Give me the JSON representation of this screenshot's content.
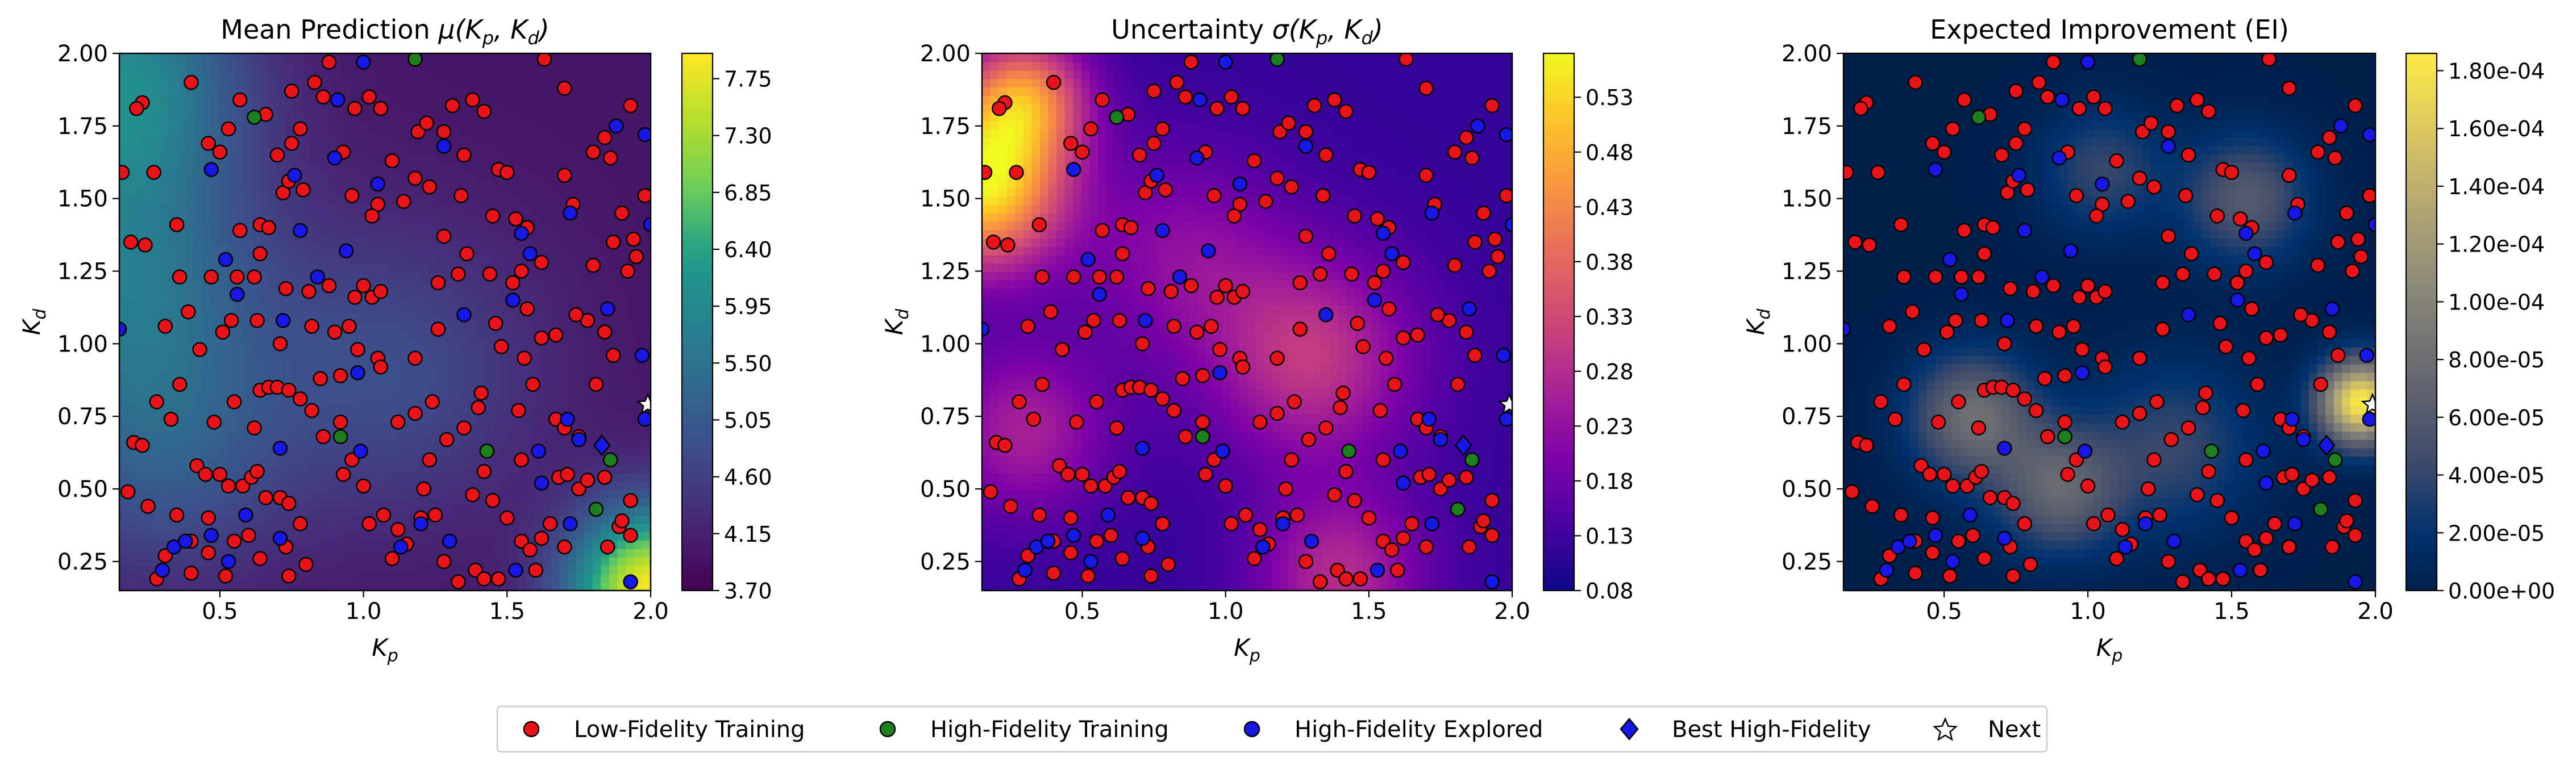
{
  "chart_data": [
    {
      "type": "heatmap",
      "title": "Mean Prediction μ(K_p, K_d)",
      "title_text": "Mean Prediction ",
      "title_math": "μ(K",
      "xlabel": "K_p",
      "ylabel": "K_d",
      "xlim": [
        0.15,
        2.0
      ],
      "ylim": [
        0.15,
        2.0
      ],
      "xticks": [
        "0.5",
        "1.0",
        "1.5",
        "2.0"
      ],
      "yticks": [
        "0.25",
        "0.50",
        "0.75",
        "1.00",
        "1.25",
        "1.50",
        "1.75",
        "2.00"
      ],
      "colormap": "viridis",
      "colorbar_range": [
        3.7,
        7.95
      ],
      "colorbar_ticks": [
        "3.70",
        "4.15",
        "4.60",
        "5.05",
        "5.50",
        "5.95",
        "6.40",
        "6.85",
        "7.30",
        "7.75"
      ],
      "field_features": [
        {
          "x": 0.15,
          "y": 1.2,
          "value": 5.5,
          "spread": 0.35
        },
        {
          "x": 0.15,
          "y": 1.9,
          "value": 5.9,
          "spread": 0.3
        },
        {
          "x": 1.1,
          "y": 0.9,
          "value": 4.8,
          "spread": 0.35
        },
        {
          "x": 0.3,
          "y": 0.6,
          "value": 4.9,
          "spread": 0.3
        },
        {
          "x": 2.0,
          "y": 0.15,
          "value": 7.9,
          "spread": 0.2
        }
      ]
    },
    {
      "type": "heatmap",
      "title": "Uncertainty σ(K_p, K_d)",
      "title_text": "Uncertainty ",
      "title_math": "σ(K",
      "xlabel": "K_p",
      "ylabel": "K_d",
      "xlim": [
        0.15,
        2.0
      ],
      "ylim": [
        0.15,
        2.0
      ],
      "xticks": [
        "0.5",
        "1.0",
        "1.5",
        "2.0"
      ],
      "yticks": [
        "0.25",
        "0.50",
        "0.75",
        "1.00",
        "1.25",
        "1.50",
        "1.75",
        "2.00"
      ],
      "colormap": "plasma",
      "colorbar_range": [
        0.08,
        0.57
      ],
      "colorbar_ticks": [
        "0.08",
        "0.13",
        "0.18",
        "0.23",
        "0.28",
        "0.33",
        "0.38",
        "0.43",
        "0.48",
        "0.53"
      ],
      "field_features": [
        {
          "x": 0.15,
          "y": 1.55,
          "value": 0.55,
          "spread": 0.2
        },
        {
          "x": 0.3,
          "y": 1.85,
          "value": 0.4,
          "spread": 0.15
        },
        {
          "x": 1.3,
          "y": 0.95,
          "value": 0.3,
          "spread": 0.25
        },
        {
          "x": 0.3,
          "y": 0.7,
          "value": 0.26,
          "spread": 0.2
        },
        {
          "x": 0.85,
          "y": 1.3,
          "value": 0.22,
          "spread": 0.25
        },
        {
          "x": 1.4,
          "y": 0.2,
          "value": 0.28,
          "spread": 0.2
        }
      ]
    },
    {
      "type": "heatmap",
      "title": "Expected Improvement (EI)",
      "title_text": "Expected Improvement (EI)",
      "title_math": "",
      "xlabel": "K_p",
      "ylabel": "K_d",
      "xlim": [
        0.15,
        2.0
      ],
      "ylim": [
        0.15,
        2.0
      ],
      "xticks": [
        "0.5",
        "1.0",
        "1.5",
        "2.0"
      ],
      "yticks": [
        "0.25",
        "0.50",
        "0.75",
        "1.00",
        "1.25",
        "1.50",
        "1.75",
        "2.00"
      ],
      "colormap": "cividis",
      "colorbar_range": [
        0,
        0.000186
      ],
      "colorbar_ticks": [
        "0.00e+00",
        "2.00e-05",
        "4.00e-05",
        "6.00e-05",
        "8.00e-05",
        "1.00e-04",
        "1.20e-04",
        "1.40e-04",
        "1.60e-04",
        "1.80e-04"
      ],
      "field_features": [
        {
          "x": 1.95,
          "y": 0.8,
          "value": 0.000185,
          "spread": 0.1
        },
        {
          "x": 0.6,
          "y": 0.75,
          "value": 8e-05,
          "spread": 0.15
        },
        {
          "x": 0.9,
          "y": 0.5,
          "value": 7e-05,
          "spread": 0.15
        },
        {
          "x": 1.55,
          "y": 1.5,
          "value": 6e-05,
          "spread": 0.15
        },
        {
          "x": 1.3,
          "y": 0.65,
          "value": 4e-05,
          "spread": 0.2
        },
        {
          "x": 1.05,
          "y": 1.6,
          "value": 4e-05,
          "spread": 0.15
        }
      ]
    }
  ],
  "points": {
    "low_fidelity": [
      [
        0.16,
        1.59
      ],
      [
        0.19,
        1.35
      ],
      [
        0.23,
        1.83
      ],
      [
        0.21,
        1.81
      ],
      [
        0.24,
        1.34
      ],
      [
        0.31,
        1.06
      ],
      [
        0.36,
        1.23
      ],
      [
        0.39,
        1.11
      ],
      [
        0.36,
        0.86
      ],
      [
        0.28,
        0.8
      ],
      [
        0.33,
        0.74
      ],
      [
        0.2,
        0.66
      ],
      [
        0.23,
        0.65
      ],
      [
        0.18,
        0.49
      ],
      [
        0.25,
        0.44
      ],
      [
        0.35,
        0.41
      ],
      [
        0.4,
        0.32
      ],
      [
        0.46,
        0.28
      ],
      [
        0.52,
        0.2
      ],
      [
        0.55,
        0.32
      ],
      [
        0.6,
        0.34
      ],
      [
        0.42,
        0.58
      ],
      [
        0.45,
        0.55
      ],
      [
        0.5,
        0.55
      ],
      [
        0.53,
        0.51
      ],
      [
        0.58,
        0.51
      ],
      [
        0.61,
        0.54
      ],
      [
        0.63,
        0.56
      ],
      [
        0.66,
        0.47
      ],
      [
        0.71,
        0.47
      ],
      [
        0.74,
        0.45
      ],
      [
        0.78,
        0.38
      ],
      [
        0.73,
        0.3
      ],
      [
        0.8,
        0.24
      ],
      [
        0.55,
        0.8
      ],
      [
        0.64,
        0.84
      ],
      [
        0.67,
        0.85
      ],
      [
        0.7,
        0.85
      ],
      [
        0.74,
        0.84
      ],
      [
        0.78,
        0.81
      ],
      [
        0.62,
        0.71
      ],
      [
        0.48,
        0.73
      ],
      [
        0.43,
        0.98
      ],
      [
        0.51,
        1.04
      ],
      [
        0.54,
        1.08
      ],
      [
        0.63,
        1.08
      ],
      [
        0.56,
        1.23
      ],
      [
        0.62,
        1.23
      ],
      [
        0.64,
        1.31
      ],
      [
        0.57,
        1.39
      ],
      [
        0.64,
        1.41
      ],
      [
        0.67,
        1.4
      ],
      [
        0.72,
        1.52
      ],
      [
        0.74,
        1.56
      ],
      [
        0.79,
        1.53
      ],
      [
        0.73,
        1.19
      ],
      [
        0.81,
        1.18
      ],
      [
        0.88,
        1.2
      ],
      [
        0.82,
        1.06
      ],
      [
        0.9,
        1.04
      ],
      [
        0.95,
        1.06
      ],
      [
        0.97,
        1.16
      ],
      [
        1.0,
        1.2
      ],
      [
        1.03,
        1.16
      ],
      [
        1.06,
        1.18
      ],
      [
        0.98,
        0.98
      ],
      [
        1.05,
        0.95
      ],
      [
        1.06,
        0.92
      ],
      [
        0.92,
        0.89
      ],
      [
        0.85,
        0.88
      ],
      [
        0.82,
        0.77
      ],
      [
        0.86,
        0.68
      ],
      [
        0.92,
        0.73
      ],
      [
        0.93,
        0.55
      ],
      [
        0.96,
        0.6
      ],
      [
        1.0,
        0.51
      ],
      [
        1.02,
        0.38
      ],
      [
        1.07,
        0.41
      ],
      [
        1.12,
        0.36
      ],
      [
        1.15,
        0.31
      ],
      [
        1.1,
        0.26
      ],
      [
        1.2,
        0.4
      ],
      [
        1.25,
        0.41
      ],
      [
        1.21,
        0.5
      ],
      [
        1.23,
        0.6
      ],
      [
        1.29,
        0.67
      ],
      [
        1.12,
        0.73
      ],
      [
        1.18,
        0.76
      ],
      [
        1.24,
        0.8
      ],
      [
        1.18,
        0.95
      ],
      [
        1.26,
        1.05
      ],
      [
        1.26,
        1.21
      ],
      [
        1.33,
        1.24
      ],
      [
        1.36,
        1.31
      ],
      [
        1.28,
        1.37
      ],
      [
        1.34,
        1.51
      ],
      [
        1.23,
        1.54
      ],
      [
        1.18,
        1.57
      ],
      [
        1.14,
        1.49
      ],
      [
        1.05,
        1.48
      ],
      [
        1.03,
        1.44
      ],
      [
        0.96,
        1.51
      ],
      [
        0.93,
        1.66
      ],
      [
        0.97,
        1.81
      ],
      [
        1.02,
        1.85
      ],
      [
        1.06,
        1.81
      ],
      [
        1.1,
        1.63
      ],
      [
        1.19,
        1.73
      ],
      [
        1.22,
        1.76
      ],
      [
        1.28,
        1.73
      ],
      [
        1.31,
        1.82
      ],
      [
        1.38,
        1.84
      ],
      [
        1.42,
        1.8
      ],
      [
        1.35,
        1.65
      ],
      [
        1.47,
        1.6
      ],
      [
        1.5,
        1.59
      ],
      [
        1.45,
        1.44
      ],
      [
        1.53,
        1.43
      ],
      [
        1.57,
        1.4
      ],
      [
        1.44,
        1.24
      ],
      [
        1.52,
        1.21
      ],
      [
        1.55,
        1.25
      ],
      [
        1.62,
        1.28
      ],
      [
        1.57,
        1.12
      ],
      [
        1.46,
        1.07
      ],
      [
        1.48,
        0.99
      ],
      [
        1.56,
        0.95
      ],
      [
        1.62,
        1.02
      ],
      [
        1.67,
        1.03
      ],
      [
        1.59,
        0.86
      ],
      [
        1.54,
        0.77
      ],
      [
        1.41,
        0.83
      ],
      [
        1.4,
        0.78
      ],
      [
        1.35,
        0.71
      ],
      [
        1.42,
        0.56
      ],
      [
        1.38,
        0.48
      ],
      [
        1.45,
        0.46
      ],
      [
        1.5,
        0.4
      ],
      [
        1.55,
        0.32
      ],
      [
        1.58,
        0.29
      ],
      [
        1.62,
        0.33
      ],
      [
        1.65,
        0.38
      ],
      [
        1.6,
        0.22
      ],
      [
        1.47,
        0.19
      ],
      [
        1.39,
        0.22
      ],
      [
        1.33,
        0.18
      ],
      [
        1.28,
        0.25
      ],
      [
        1.68,
        0.54
      ],
      [
        1.71,
        0.55
      ],
      [
        1.75,
        0.5
      ],
      [
        1.78,
        0.53
      ],
      [
        1.84,
        0.54
      ],
      [
        1.89,
        0.37
      ],
      [
        1.9,
        0.39
      ],
      [
        1.93,
        0.34
      ],
      [
        1.93,
        0.46
      ],
      [
        1.81,
        0.86
      ],
      [
        1.87,
        0.96
      ],
      [
        1.84,
        1.04
      ],
      [
        1.78,
        1.08
      ],
      [
        1.74,
        1.1
      ],
      [
        1.8,
        1.27
      ],
      [
        1.92,
        1.25
      ],
      [
        1.95,
        1.3
      ],
      [
        1.87,
        1.35
      ],
      [
        1.9,
        1.45
      ],
      [
        1.94,
        1.36
      ],
      [
        1.73,
        1.48
      ],
      [
        1.7,
        1.58
      ],
      [
        1.8,
        1.66
      ],
      [
        1.86,
        1.64
      ],
      [
        1.84,
        1.71
      ],
      [
        1.93,
        1.82
      ],
      [
        1.98,
        1.51
      ],
      [
        1.7,
        1.88
      ],
      [
        1.63,
        1.98
      ],
      [
        0.27,
        1.59
      ],
      [
        0.35,
        1.41
      ],
      [
        0.46,
        1.69
      ],
      [
        0.5,
        1.66
      ],
      [
        0.53,
        1.74
      ],
      [
        0.57,
        1.84
      ],
      [
        0.66,
        1.79
      ],
      [
        0.7,
        1.65
      ],
      [
        0.75,
        1.69
      ],
      [
        0.78,
        1.74
      ],
      [
        0.86,
        1.85
      ],
      [
        0.83,
        1.9
      ],
      [
        0.88,
        1.97
      ],
      [
        0.75,
        1.87
      ],
      [
        0.4,
        1.9
      ],
      [
        0.31,
        0.27
      ],
      [
        0.28,
        0.19
      ],
      [
        0.4,
        0.21
      ],
      [
        0.74,
        0.2
      ],
      [
        1.7,
        0.3
      ],
      [
        1.85,
        0.3
      ],
      [
        1.42,
        0.19
      ],
      [
        1.55,
        0.6
      ],
      [
        0.64,
        0.26
      ],
      [
        0.46,
        0.4
      ],
      [
        0.71,
        1.0
      ],
      [
        0.47,
        1.23
      ],
      [
        1.67,
        0.74
      ],
      [
        1.7,
        0.71
      ],
      [
        1.75,
        0.68
      ]
    ],
    "high_fidelity": [
      [
        0.62,
        1.78
      ],
      [
        1.18,
        1.98
      ],
      [
        0.92,
        0.68
      ],
      [
        1.43,
        0.63
      ],
      [
        1.81,
        0.43
      ],
      [
        1.86,
        0.6
      ]
    ],
    "explored": [
      [
        0.15,
        1.05
      ],
      [
        0.34,
        0.3
      ],
      [
        0.38,
        0.32
      ],
      [
        0.52,
        1.29
      ],
      [
        0.47,
        1.6
      ],
      [
        0.78,
        1.39
      ],
      [
        0.76,
        1.58
      ],
      [
        0.94,
        1.32
      ],
      [
        0.91,
        1.84
      ],
      [
        1.0,
        1.97
      ],
      [
        1.28,
        1.68
      ],
      [
        1.58,
        1.31
      ],
      [
        1.52,
        1.15
      ],
      [
        1.55,
        1.38
      ],
      [
        1.72,
        1.45
      ],
      [
        1.88,
        1.75
      ],
      [
        1.98,
        1.72
      ],
      [
        2.0,
        1.41
      ],
      [
        1.97,
        0.96
      ],
      [
        1.98,
        0.74
      ],
      [
        1.75,
        0.67
      ],
      [
        1.71,
        0.74
      ],
      [
        1.62,
        0.52
      ],
      [
        1.72,
        0.38
      ],
      [
        1.53,
        0.22
      ],
      [
        1.3,
        0.32
      ],
      [
        1.2,
        0.38
      ],
      [
        1.13,
        0.3
      ],
      [
        0.99,
        0.63
      ],
      [
        0.71,
        0.64
      ],
      [
        0.71,
        0.33
      ],
      [
        0.59,
        0.41
      ],
      [
        0.47,
        0.34
      ],
      [
        0.53,
        0.25
      ],
      [
        0.3,
        0.22
      ],
      [
        0.84,
        1.23
      ],
      [
        0.9,
        1.64
      ],
      [
        1.05,
        1.55
      ],
      [
        0.72,
        1.08
      ],
      [
        0.56,
        1.17
      ],
      [
        1.35,
        1.1
      ],
      [
        1.61,
        0.63
      ],
      [
        1.85,
        1.12
      ],
      [
        0.98,
        0.9
      ],
      [
        1.93,
        0.18
      ]
    ],
    "best": [
      [
        1.83,
        0.65
      ]
    ],
    "next": [
      [
        1.99,
        0.79
      ]
    ]
  },
  "legend": [
    {
      "label": "Low-Fidelity Training",
      "marker": "circle",
      "color": "#e8141a"
    },
    {
      "label": "High-Fidelity Training",
      "marker": "circle",
      "color": "#1e7f1e"
    },
    {
      "label": "High-Fidelity Explored",
      "marker": "circle",
      "color": "#1717e6"
    },
    {
      "label": "Best High-Fidelity",
      "marker": "diamond",
      "color": "#1717e6"
    },
    {
      "label": "Next",
      "marker": "star",
      "color": "#ffffff"
    }
  ],
  "colors": {
    "low_fidelity": "#e8141a",
    "high_fidelity": "#1e7f1e",
    "explored": "#1717e6",
    "best": "#1717e6",
    "next": "#ffffff",
    "marker_edge": "#000000"
  }
}
